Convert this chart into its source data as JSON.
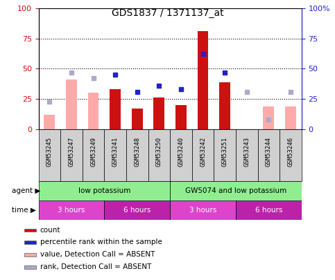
{
  "title": "GDS1837 / 1371137_at",
  "samples": [
    "GSM53245",
    "GSM53247",
    "GSM53249",
    "GSM53241",
    "GSM53248",
    "GSM53250",
    "GSM53240",
    "GSM53242",
    "GSM53251",
    "GSM53243",
    "GSM53244",
    "GSM53246"
  ],
  "count_values": [
    null,
    null,
    null,
    33,
    17,
    26,
    20,
    81,
    39,
    null,
    null,
    null
  ],
  "count_absent": [
    12,
    41,
    30,
    null,
    null,
    null,
    null,
    null,
    null,
    null,
    19,
    19
  ],
  "percentile_rank": [
    null,
    null,
    null,
    45,
    31,
    36,
    33,
    62,
    47,
    null,
    null,
    null
  ],
  "rank_absent": [
    23,
    47,
    42,
    null,
    null,
    null,
    null,
    null,
    null,
    31,
    8,
    31
  ],
  "ylim": [
    0,
    100
  ],
  "grid_vals": [
    25,
    50,
    75
  ],
  "agent_groups": [
    {
      "label": "low potassium",
      "start": 0,
      "end": 6,
      "color": "#90ee90"
    },
    {
      "label": "GW5074 and low potassium",
      "start": 6,
      "end": 12,
      "color": "#90ee90"
    }
  ],
  "time_groups": [
    {
      "label": "3 hours",
      "start": 0,
      "end": 3,
      "color": "#dd44cc"
    },
    {
      "label": "6 hours",
      "start": 3,
      "end": 6,
      "color": "#bb22aa"
    },
    {
      "label": "3 hours",
      "start": 6,
      "end": 9,
      "color": "#dd44cc"
    },
    {
      "label": "6 hours",
      "start": 9,
      "end": 12,
      "color": "#bb22aa"
    }
  ],
  "bar_width": 0.5,
  "count_color": "#cc1111",
  "count_absent_color": "#ffaaaa",
  "rank_color": "#2222cc",
  "rank_absent_color": "#aaaacc",
  "left_axis_color": "#cc1111",
  "right_axis_color": "#2222cc",
  "plot_bg": "#ffffff",
  "sample_bg": "#d0d0d0",
  "legend_items": [
    {
      "label": "count",
      "color": "#cc1111"
    },
    {
      "label": "percentile rank within the sample",
      "color": "#2222cc"
    },
    {
      "label": "value, Detection Call = ABSENT",
      "color": "#ffaaaa"
    },
    {
      "label": "rank, Detection Call = ABSENT",
      "color": "#aaaacc"
    }
  ]
}
